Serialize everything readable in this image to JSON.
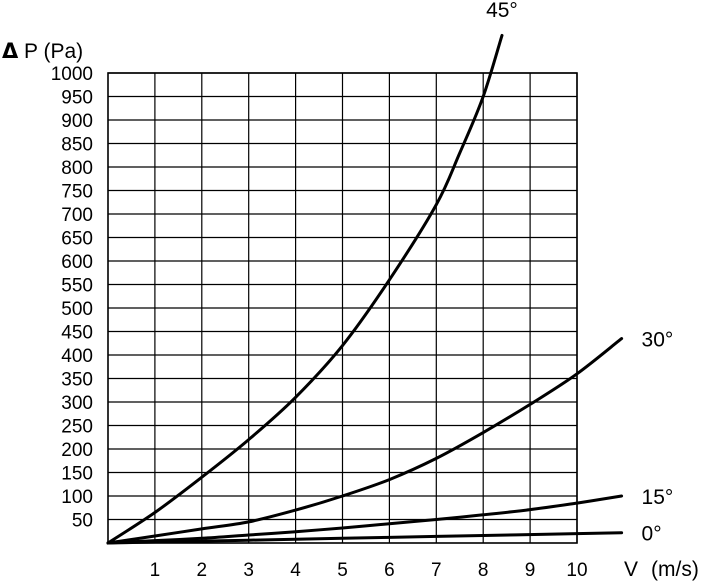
{
  "chart_data": {
    "type": "line",
    "ylabel_symbol": "Δ",
    "ylabel": "P (Pa)",
    "xlabel_symbol": "V",
    "xlabel": "(m/s)",
    "xlim": [
      0,
      10
    ],
    "ylim": [
      0,
      1000
    ],
    "x_ticks": [
      1,
      2,
      3,
      4,
      5,
      6,
      7,
      8,
      9,
      10
    ],
    "y_ticks": [
      50,
      100,
      150,
      200,
      250,
      300,
      350,
      400,
      450,
      500,
      550,
      600,
      650,
      700,
      750,
      800,
      850,
      900,
      950,
      1000
    ],
    "grid": true,
    "series": [
      {
        "name": "45°",
        "x": [
          0,
          1,
          2,
          3,
          4,
          5,
          6,
          7,
          7.5,
          8,
          8.4
        ],
        "values": [
          0,
          65,
          140,
          220,
          310,
          420,
          560,
          720,
          830,
          950,
          1080
        ]
      },
      {
        "name": "30°",
        "x": [
          0,
          1,
          2,
          3,
          4,
          5,
          6,
          7,
          8,
          9,
          10,
          10.95
        ],
        "values": [
          0,
          15,
          30,
          45,
          70,
          100,
          135,
          180,
          235,
          295,
          360,
          435
        ]
      },
      {
        "name": "15°",
        "x": [
          0,
          1,
          2,
          3,
          4,
          5,
          6,
          7,
          8,
          9,
          10,
          10.95
        ],
        "values": [
          0,
          5,
          10,
          17,
          24,
          32,
          41,
          50,
          60,
          71,
          85,
          100
        ]
      },
      {
        "name": "0°",
        "x": [
          0,
          2,
          4,
          6,
          8,
          10,
          10.95
        ],
        "values": [
          0,
          4,
          8,
          12,
          16,
          20,
          22
        ]
      }
    ]
  }
}
